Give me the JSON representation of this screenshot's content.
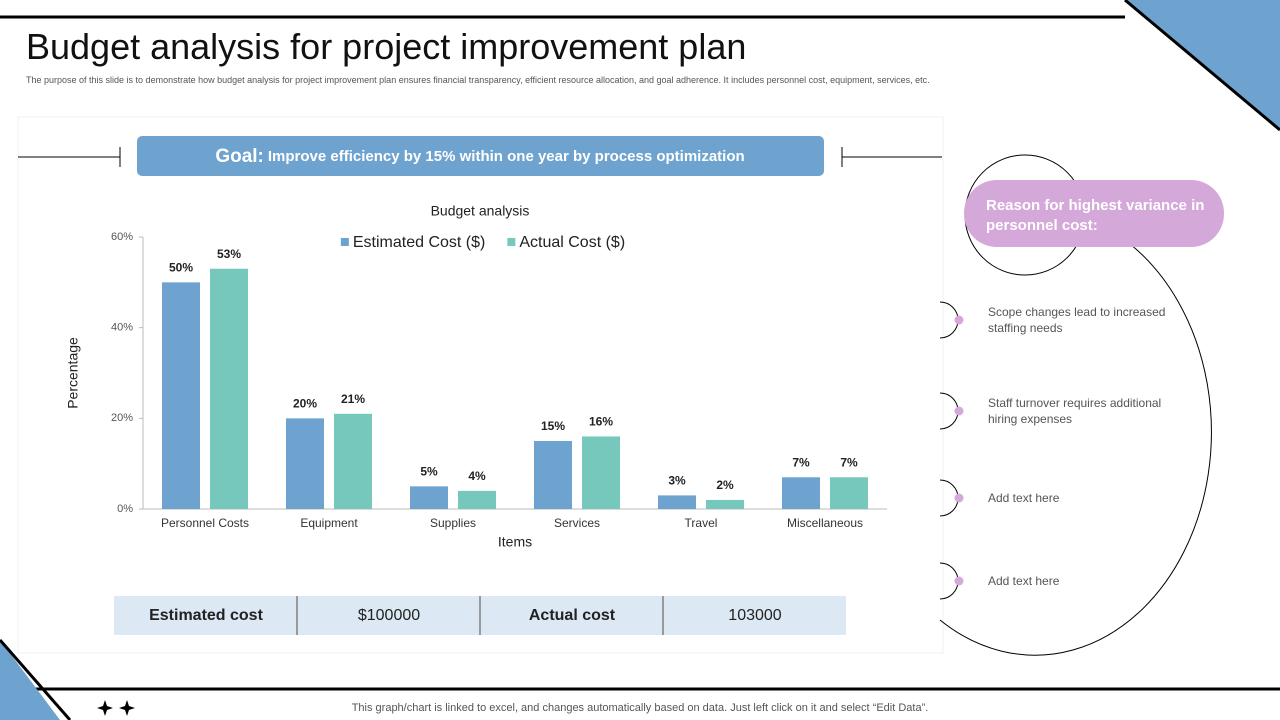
{
  "header": {
    "title": "Budget analysis for project improvement plan",
    "subtitle": "The purpose of this slide is to demonstrate how budget analysis for project improvement plan ensures financial transparency, efficient resource allocation, and goal adherence. It includes personnel cost, equipment, services, etc."
  },
  "goal": {
    "label": "Goal:",
    "text": "Improve efficiency by 15% within one year by process optimization"
  },
  "chart_data": {
    "type": "bar",
    "title": "Budget analysis",
    "x_label": "Items",
    "y_label": "Percentage",
    "categories": [
      "Personnel Costs",
      "Equipment",
      "Supplies",
      "Services",
      "Travel",
      "Miscellaneous"
    ],
    "series": [
      {
        "name": "Estimated Cost ($)",
        "color": "#6fa3cf",
        "values": [
          50,
          20,
          5,
          15,
          3,
          7
        ],
        "value_labels": [
          "50%",
          "20%",
          "5%",
          "15%",
          "3%",
          "7%"
        ]
      },
      {
        "name": "Actual Cost ($)",
        "color": "#76c8bd",
        "values": [
          53,
          21,
          4,
          16,
          2,
          7
        ],
        "value_labels": [
          "53%",
          "21%",
          "4%",
          "16%",
          "2%",
          "7%"
        ]
      }
    ],
    "ylim": [
      0,
      60
    ],
    "yticks": [
      {
        "value": 0,
        "label": "0%"
      },
      {
        "value": 20,
        "label": "20%"
      },
      {
        "value": 40,
        "label": "40%"
      },
      {
        "value": 60,
        "label": "60%"
      }
    ],
    "legend": "top",
    "grid": false
  },
  "summary_table": {
    "cells": [
      "Estimated cost",
      "$100000",
      "Actual cost",
      "103000"
    ]
  },
  "reasons": {
    "title": "Reason for highest variance in personnel cost:",
    "items": [
      "Scope changes lead to increased staffing needs",
      "Staff turnover requires additional hiring expenses",
      "Add text here",
      "Add text here"
    ]
  },
  "footer": "This graph/chart is linked to excel,  and changes automatically based on data. Just left click on it and select “Edit Data”."
}
